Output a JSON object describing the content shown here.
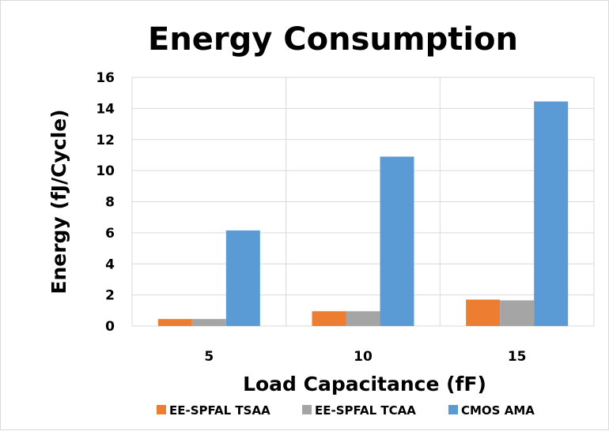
{
  "chart_data": {
    "type": "bar",
    "title": "Energy Consumption",
    "xlabel": "Load Capacitance (fF)",
    "ylabel": "Energy (fJ/Cycle)",
    "categories": [
      "5",
      "10",
      "15"
    ],
    "ylim": [
      0,
      16
    ],
    "yticks": [
      0,
      2,
      4,
      6,
      8,
      10,
      12,
      14,
      16
    ],
    "grid": true,
    "legend_position": "bottom",
    "series": [
      {
        "name": "EE-SPFAL TSAA",
        "color": "#ED7D31",
        "values": [
          0.45,
          0.95,
          1.7
        ]
      },
      {
        "name": "EE-SPFAL TCAA",
        "color": "#A5A5A5",
        "values": [
          0.45,
          0.95,
          1.65
        ]
      },
      {
        "name": "CMOS AMA",
        "color": "#5B9BD5",
        "values": [
          6.15,
          10.9,
          14.45
        ]
      }
    ]
  }
}
